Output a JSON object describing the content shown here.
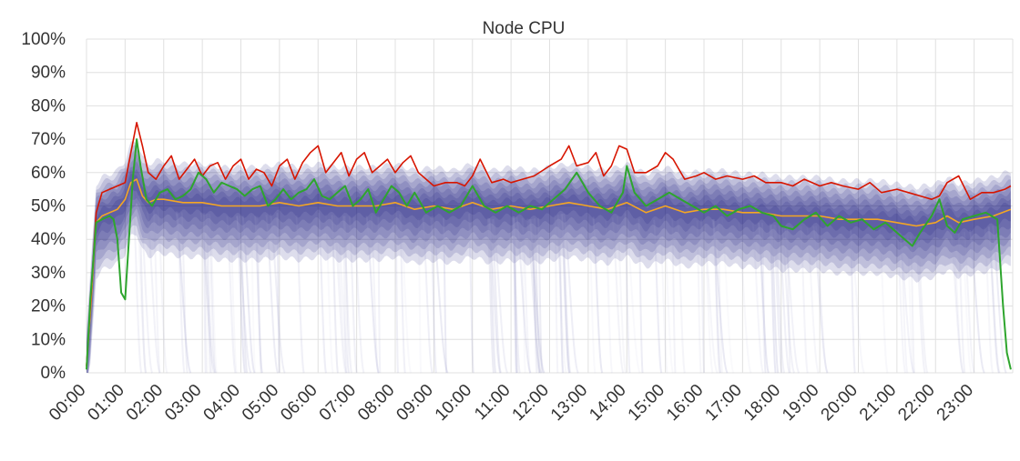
{
  "chart_data": {
    "type": "line",
    "title": "Node CPU",
    "xlabel": "",
    "ylabel": "",
    "x_ticks": [
      "00:00",
      "01:00",
      "02:00",
      "03:00",
      "04:00",
      "05:00",
      "06:00",
      "07:00",
      "08:00",
      "09:00",
      "10:00",
      "11:00",
      "12:00",
      "13:00",
      "14:00",
      "15:00",
      "16:00",
      "17:00",
      "18:00",
      "19:00",
      "20:00",
      "21:00",
      "22:00",
      "23:00"
    ],
    "y_ticks": [
      "0%",
      "10%",
      "20%",
      "30%",
      "40%",
      "50%",
      "60%",
      "70%",
      "80%",
      "90%",
      "100%"
    ],
    "xlim": [
      0,
      24
    ],
    "ylim": [
      0,
      100
    ],
    "grid": true,
    "legend": "none",
    "colors": {
      "max": "#d71500",
      "median": "#f5a623",
      "sample": "#2ea52e",
      "band": "#0c0c7a",
      "traces": "#9a9ac8",
      "grid": "#e0e0e0"
    },
    "series": [
      {
        "role": "max",
        "x": [
          0,
          0.1,
          0.25,
          0.4,
          0.6,
          0.8,
          1.0,
          1.15,
          1.3,
          1.45,
          1.6,
          1.8,
          2.0,
          2.2,
          2.4,
          2.6,
          2.8,
          3.0,
          3.2,
          3.4,
          3.6,
          3.8,
          4.0,
          4.2,
          4.4,
          4.6,
          4.8,
          5.0,
          5.2,
          5.4,
          5.6,
          5.8,
          6.0,
          6.2,
          6.4,
          6.6,
          6.8,
          7.0,
          7.2,
          7.4,
          7.6,
          7.8,
          8.0,
          8.2,
          8.4,
          8.6,
          8.8,
          9.0,
          9.3,
          9.6,
          9.8,
          10.0,
          10.2,
          10.5,
          10.8,
          11.0,
          11.3,
          11.6,
          12.0,
          12.3,
          12.5,
          12.7,
          13.0,
          13.2,
          13.4,
          13.6,
          13.8,
          14.0,
          14.2,
          14.5,
          14.8,
          15.0,
          15.2,
          15.5,
          15.8,
          16.0,
          16.3,
          16.6,
          17.0,
          17.3,
          17.6,
          18.0,
          18.3,
          18.6,
          19.0,
          19.3,
          19.6,
          20.0,
          20.3,
          20.6,
          21.0,
          21.3,
          21.6,
          21.9,
          22.1,
          22.3,
          22.6,
          22.9,
          23.2,
          23.5,
          23.8,
          23.95
        ],
        "y": [
          2,
          20,
          48,
          54,
          55,
          56,
          57,
          66,
          75,
          68,
          60,
          58,
          62,
          65,
          58,
          61,
          64,
          59,
          62,
          63,
          58,
          62,
          64,
          58,
          61,
          60,
          56,
          62,
          64,
          58,
          63,
          66,
          68,
          60,
          63,
          66,
          59,
          64,
          66,
          60,
          62,
          64,
          60,
          63,
          65,
          60,
          58,
          56,
          57,
          57,
          56,
          59,
          64,
          57,
          58,
          57,
          58,
          59,
          62,
          64,
          68,
          62,
          63,
          66,
          59,
          62,
          68,
          67,
          60,
          60,
          62,
          66,
          64,
          58,
          59,
          60,
          58,
          59,
          58,
          59,
          57,
          57,
          56,
          58,
          56,
          57,
          56,
          55,
          57,
          54,
          55,
          54,
          53,
          52,
          53,
          57,
          59,
          52,
          54,
          54,
          55,
          56
        ]
      },
      {
        "role": "median",
        "x": [
          0,
          0.1,
          0.25,
          0.4,
          0.6,
          0.8,
          1.0,
          1.15,
          1.3,
          1.45,
          1.6,
          1.8,
          2.0,
          2.5,
          3.0,
          3.5,
          4.0,
          4.5,
          5.0,
          5.5,
          6.0,
          6.5,
          7.0,
          7.5,
          8.0,
          8.5,
          9.0,
          9.5,
          10.0,
          10.5,
          11.0,
          11.5,
          12.0,
          12.5,
          13.0,
          13.5,
          14.0,
          14.5,
          15.0,
          15.5,
          16.0,
          16.5,
          17.0,
          17.5,
          18.0,
          18.5,
          19.0,
          19.5,
          20.0,
          20.5,
          21.0,
          21.5,
          22.0,
          22.3,
          22.6,
          23.0,
          23.5,
          23.95
        ],
        "y": [
          2,
          18,
          45,
          47,
          48,
          49,
          52,
          57,
          58,
          53,
          51,
          52,
          52,
          51,
          51,
          50,
          50,
          50,
          51,
          50,
          51,
          50,
          50,
          50,
          51,
          49,
          50,
          49,
          51,
          49,
          50,
          49,
          50,
          51,
          50,
          49,
          51,
          48,
          50,
          48,
          49,
          49,
          48,
          48,
          47,
          47,
          47,
          46,
          46,
          46,
          45,
          44,
          45,
          47,
          45,
          46,
          47,
          49
        ]
      },
      {
        "role": "sample",
        "x": [
          0,
          0.1,
          0.25,
          0.4,
          0.6,
          0.7,
          0.8,
          0.9,
          1.0,
          1.1,
          1.2,
          1.3,
          1.4,
          1.55,
          1.7,
          1.9,
          2.1,
          2.3,
          2.5,
          2.7,
          2.9,
          3.1,
          3.3,
          3.5,
          3.7,
          3.9,
          4.1,
          4.3,
          4.5,
          4.7,
          4.9,
          5.1,
          5.3,
          5.5,
          5.7,
          5.9,
          6.1,
          6.3,
          6.5,
          6.7,
          6.9,
          7.1,
          7.3,
          7.5,
          7.7,
          7.9,
          8.1,
          8.3,
          8.5,
          8.8,
          9.1,
          9.4,
          9.7,
          10.0,
          10.3,
          10.6,
          10.9,
          11.2,
          11.5,
          11.8,
          12.1,
          12.4,
          12.7,
          13.0,
          13.3,
          13.6,
          13.9,
          14.0,
          14.2,
          14.5,
          14.8,
          15.1,
          15.4,
          15.7,
          16.0,
          16.3,
          16.6,
          16.9,
          17.2,
          17.5,
          17.8,
          18.0,
          18.3,
          18.6,
          18.9,
          19.2,
          19.5,
          19.8,
          20.1,
          20.4,
          20.7,
          21.0,
          21.2,
          21.4,
          21.6,
          21.9,
          22.1,
          22.3,
          22.5,
          22.7,
          23.0,
          23.3,
          23.6,
          23.75,
          23.85,
          23.95
        ],
        "y": [
          1,
          22,
          45,
          46,
          47,
          46,
          40,
          24,
          22,
          40,
          58,
          70,
          62,
          52,
          50,
          54,
          55,
          52,
          53,
          55,
          60,
          58,
          54,
          57,
          56,
          55,
          53,
          55,
          56,
          50,
          52,
          55,
          52,
          54,
          55,
          58,
          53,
          52,
          54,
          56,
          50,
          52,
          55,
          48,
          52,
          56,
          54,
          50,
          54,
          48,
          50,
          48,
          50,
          56,
          50,
          48,
          50,
          48,
          50,
          49,
          52,
          55,
          60,
          54,
          50,
          48,
          54,
          62,
          54,
          50,
          52,
          54,
          52,
          50,
          48,
          50,
          47,
          49,
          50,
          48,
          47,
          44,
          43,
          46,
          48,
          44,
          47,
          45,
          46,
          43,
          45,
          42,
          40,
          38,
          42,
          47,
          52,
          44,
          42,
          46,
          47,
          48,
          46,
          20,
          6,
          1
        ]
      }
    ]
  }
}
